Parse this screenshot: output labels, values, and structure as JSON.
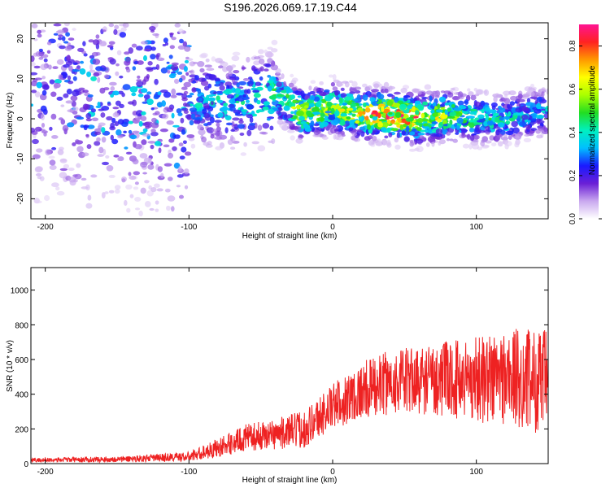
{
  "title": "S196.2026.069.17.19.C44",
  "chart_data": [
    {
      "type": "heatmap",
      "name": "spectrogram",
      "xlabel": "Height of straight line (km)",
      "ylabel": "Frequency (Hz)",
      "xlim": [
        -210,
        150
      ],
      "ylim": [
        -25,
        24
      ],
      "xticks": [
        -200,
        -100,
        0,
        100
      ],
      "yticks": [
        -20,
        -10,
        0,
        10,
        20
      ],
      "colorbar": {
        "label": "Normalized spectral amplitude",
        "range": [
          0.0,
          0.9
        ],
        "ticks": [
          0.0,
          0.2,
          0.4,
          0.6,
          0.8
        ],
        "colormap": [
          "#ffffff",
          "#c9a8ef",
          "#6a1fd6",
          "#1a1aff",
          "#00bfff",
          "#00f0c0",
          "#22dd22",
          "#aaff00",
          "#ffff00",
          "#ff9900",
          "#ff2222",
          "#ff1493"
        ]
      },
      "ridge": {
        "description_x": [
          -210,
          -150,
          -100,
          -60,
          -40,
          -20,
          0,
          20,
          40,
          60,
          80,
          100,
          120,
          150
        ],
        "center_hz": [
          8,
          6,
          4,
          4,
          6,
          1,
          3,
          1,
          1,
          0,
          1,
          0,
          0,
          2
        ],
        "peak_amplitude": [
          0.25,
          0.3,
          0.35,
          0.4,
          0.45,
          0.6,
          0.6,
          0.65,
          0.8,
          0.7,
          0.55,
          0.45,
          0.4,
          0.35
        ]
      }
    },
    {
      "type": "line",
      "name": "snr",
      "xlabel": "Height of straight line (km)",
      "ylabel": "SNR (10 * v/v)",
      "xlim": [
        -210,
        150
      ],
      "ylim": [
        0,
        1130
      ],
      "xticks": [
        -200,
        -100,
        0,
        100
      ],
      "yticks": [
        0,
        200,
        400,
        600,
        800,
        1000
      ],
      "color": "#ee2222",
      "trend_x": [
        -210,
        -150,
        -100,
        -80,
        -60,
        -40,
        -20,
        0,
        20,
        40,
        60,
        80,
        100,
        120,
        150
      ],
      "trend_mean": [
        20,
        25,
        40,
        90,
        150,
        170,
        200,
        330,
        420,
        470,
        480,
        490,
        490,
        500,
        470
      ],
      "trend_noise": [
        12,
        15,
        25,
        50,
        70,
        80,
        100,
        120,
        150,
        170,
        180,
        200,
        230,
        260,
        280
      ]
    }
  ]
}
